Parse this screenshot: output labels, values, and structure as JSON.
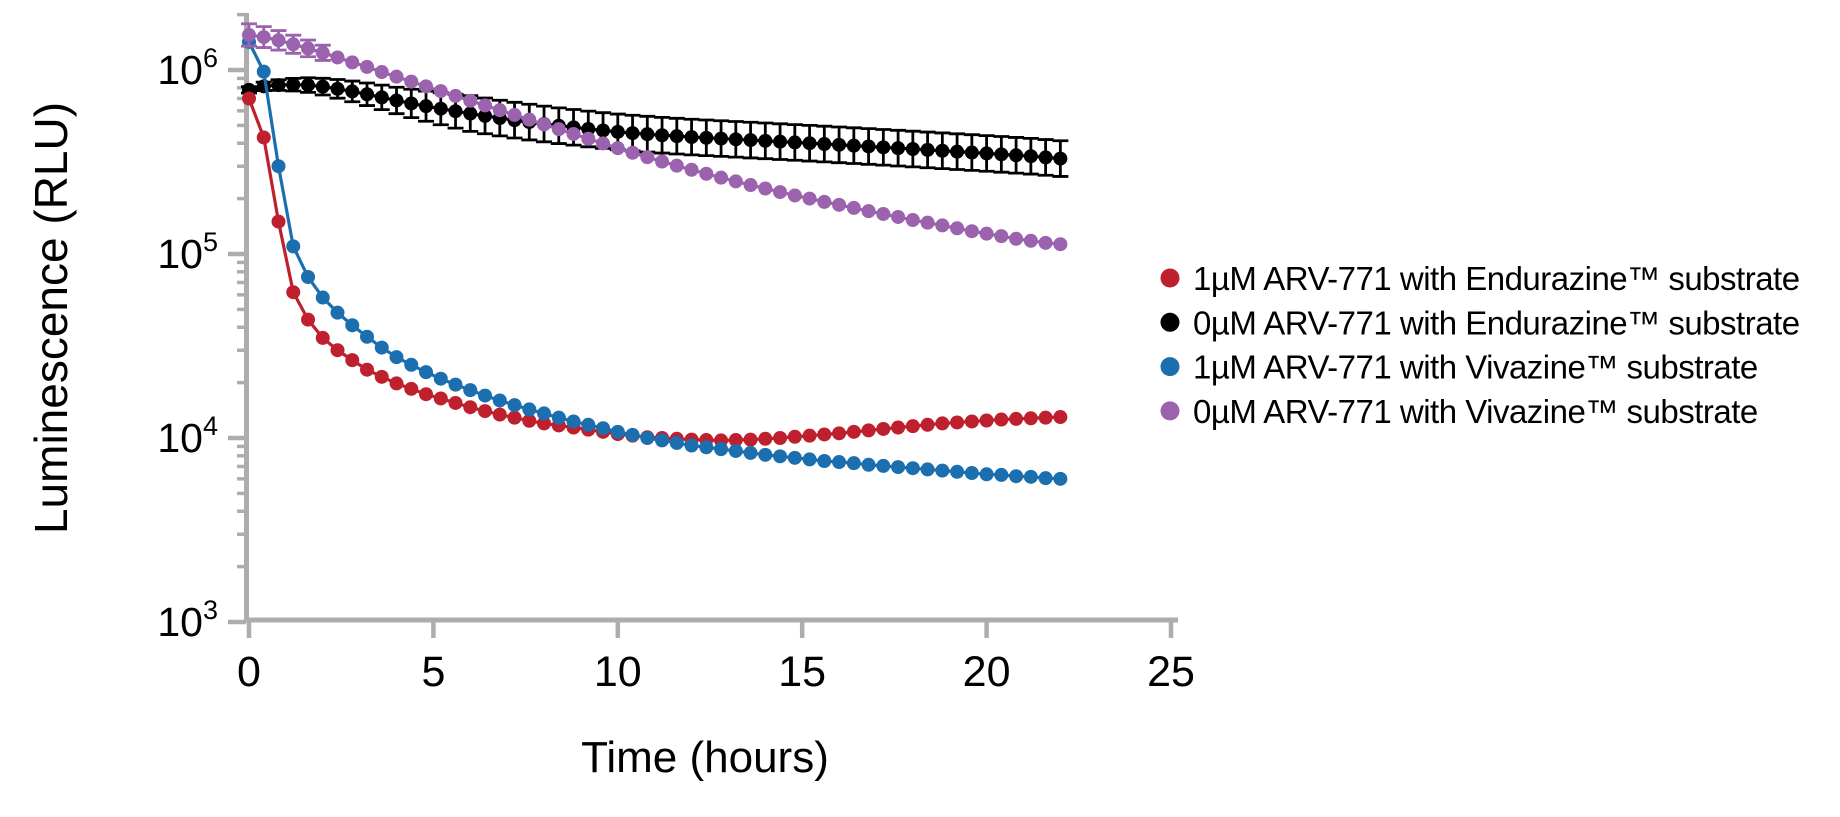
{
  "figure": {
    "background": "#ffffff",
    "axis_color": "#adadad",
    "text_color": "#000000"
  },
  "chart_data": {
    "type": "line",
    "title": "",
    "xlabel": "Time (hours)",
    "ylabel": "Luminescence (RLU)",
    "x_axis": {
      "label": "Time (hours)",
      "min": 0,
      "max": 25,
      "ticks": [
        0,
        5,
        10,
        15,
        20,
        25
      ]
    },
    "y_axis": {
      "label": "Luminescence (RLU)",
      "scale": "log",
      "min": 1000,
      "max": 2000000,
      "base": "10",
      "tick_exponents": [
        3,
        4,
        5,
        6
      ],
      "tick_labels": [
        "10³",
        "10⁴",
        "10⁵",
        "10⁶"
      ]
    },
    "legend": {
      "position": "right",
      "marker": "circle"
    },
    "time_hours": [
      0,
      0.4,
      0.8,
      1.2,
      1.6,
      2,
      2.4,
      2.8,
      3.2,
      3.6,
      4,
      4.4,
      4.8,
      5.2,
      5.6,
      6,
      6.4,
      6.8,
      7.2,
      7.6,
      8,
      8.4,
      8.8,
      9.2,
      9.6,
      10,
      10.4,
      10.8,
      11.2,
      11.6,
      12,
      12.4,
      12.8,
      13.2,
      13.6,
      14,
      14.4,
      14.8,
      15.2,
      15.6,
      16,
      16.4,
      16.8,
      17.2,
      17.6,
      18,
      18.4,
      18.8,
      19.2,
      19.6,
      20,
      20.4,
      20.8,
      21.2,
      21.6,
      22
    ],
    "draw_order": [
      1,
      0,
      2,
      3
    ],
    "series": [
      {
        "name": "1µM ARV-771 with Endurazine™ substrate",
        "color": "#be202e",
        "values": [
          700000,
          430000,
          150000,
          62000,
          44000,
          35000,
          30000,
          26500,
          23500,
          21500,
          19800,
          18500,
          17300,
          16400,
          15500,
          14700,
          14000,
          13400,
          12900,
          12400,
          12000,
          11700,
          11400,
          11100,
          10800,
          10500,
          10300,
          10100,
          10000,
          9900,
          9800,
          9750,
          9700,
          9750,
          9800,
          9900,
          10000,
          10150,
          10300,
          10450,
          10600,
          10800,
          11000,
          11200,
          11400,
          11600,
          11800,
          12000,
          12150,
          12300,
          12450,
          12600,
          12700,
          12800,
          12900,
          13000
        ],
        "error_frac": null
      },
      {
        "name": "0µM ARV-771 with Endurazine™ substrate",
        "color": "#000000",
        "values": [
          780000,
          815000,
          828000,
          832000,
          828000,
          812000,
          790000,
          765000,
          738000,
          710000,
          683000,
          658000,
          636000,
          616000,
          597000,
          580000,
          563000,
          548000,
          534000,
          521000,
          509000,
          498000,
          488000,
          478000,
          469000,
          461000,
          454000,
          448000,
          442000,
          437000,
          432000,
          428000,
          424000,
          420000,
          416000,
          412000,
          408000,
          404000,
          400000,
          396000,
          392000,
          388000,
          384000,
          380000,
          376000,
          372000,
          368000,
          364000,
          360000,
          356000,
          352000,
          348000,
          344000,
          340000,
          335000,
          330000
        ],
        "error_frac": [
          0.04,
          0.054,
          0.068,
          0.082,
          0.096,
          0.11,
          0.124,
          0.138,
          0.152,
          0.166,
          0.18,
          0.194,
          0.208,
          0.222,
          0.236,
          0.25,
          0.25,
          0.25,
          0.25,
          0.25,
          0.25,
          0.25,
          0.25,
          0.25,
          0.25,
          0.25,
          0.25,
          0.25,
          0.25,
          0.25,
          0.25,
          0.25,
          0.25,
          0.25,
          0.25,
          0.25,
          0.25,
          0.25,
          0.25,
          0.25,
          0.25,
          0.25,
          0.25,
          0.25,
          0.25,
          0.25,
          0.25,
          0.25,
          0.25,
          0.25,
          0.25,
          0.25,
          0.25,
          0.25,
          0.25,
          0.25
        ]
      },
      {
        "name": "1µM ARV-771 with Vivazine™ substrate",
        "color": "#1c6fae",
        "values": [
          1420000,
          980000,
          300000,
          110000,
          75000,
          58000,
          48000,
          41000,
          35500,
          31000,
          27500,
          25000,
          22800,
          21000,
          19500,
          18200,
          17000,
          16000,
          15100,
          14300,
          13600,
          12900,
          12300,
          11800,
          11300,
          10800,
          10400,
          10000,
          9700,
          9400,
          9100,
          8900,
          8700,
          8500,
          8300,
          8100,
          7950,
          7800,
          7650,
          7500,
          7400,
          7300,
          7150,
          7050,
          6950,
          6850,
          6750,
          6650,
          6550,
          6450,
          6350,
          6300,
          6200,
          6150,
          6050,
          6000
        ],
        "error_frac": null
      },
      {
        "name": "0µM ARV-771 with Vivazine™ substrate",
        "color": "#9b62ad",
        "values": [
          1550000,
          1510000,
          1450000,
          1380000,
          1310000,
          1240000,
          1170000,
          1100000,
          1040000,
          975000,
          920000,
          865000,
          815000,
          768000,
          723000,
          681000,
          642000,
          605000,
          570000,
          537000,
          506000,
          477000,
          449000,
          423000,
          399000,
          376000,
          355000,
          336000,
          318000,
          302000,
          287000,
          273000,
          260000,
          248000,
          237000,
          227000,
          217000,
          208000,
          200000,
          192000,
          185000,
          178000,
          171000,
          165000,
          159000,
          153000,
          148000,
          143000,
          138000,
          133000,
          129000,
          125000,
          121000,
          118000,
          115000,
          113000
        ],
        "error_frac": [
          0.15,
          0.14,
          0.13,
          0.12,
          0.11,
          0.1,
          0,
          0,
          0,
          0,
          0,
          0,
          0,
          0,
          0,
          0,
          0,
          0,
          0,
          0,
          0,
          0,
          0,
          0,
          0,
          0,
          0,
          0,
          0,
          0,
          0,
          0,
          0,
          0,
          0,
          0,
          0,
          0,
          0,
          0,
          0,
          0,
          0,
          0,
          0,
          0,
          0,
          0,
          0,
          0,
          0,
          0,
          0,
          0,
          0,
          0
        ]
      }
    ]
  }
}
